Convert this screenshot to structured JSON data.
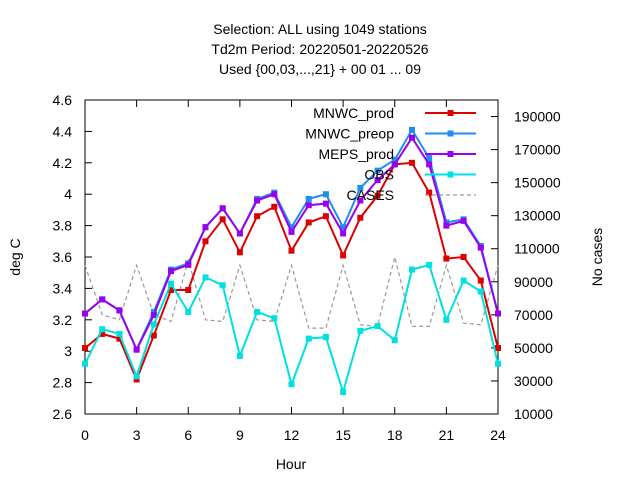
{
  "chart_data": {
    "type": "line",
    "title_lines": [
      "Selection: ALL using  1049 stations",
      "Td2m   Period: 20220501-20220526",
      "Used {00,03,...,21} + 00 01 ... 09"
    ],
    "xlabel": "Hour",
    "ylabel": "deg C",
    "y2label": "No cases",
    "xlim": [
      0,
      24
    ],
    "ylim": [
      2.6,
      4.6
    ],
    "y2lim": [
      10000,
      200000
    ],
    "xticks": [
      "0",
      "3",
      "6",
      "9",
      "12",
      "15",
      "18",
      "21",
      "24"
    ],
    "yticks": [
      "2.6",
      "2.8",
      "3",
      "3.2",
      "3.4",
      "3.6",
      "3.8",
      "4",
      "4.2",
      "4.4",
      "4.6"
    ],
    "y2ticks": [
      "10000",
      "30000",
      "50000",
      "70000",
      "90000",
      "110000",
      "130000",
      "150000",
      "170000",
      "190000"
    ],
    "x": [
      0,
      1,
      2,
      3,
      4,
      5,
      6,
      7,
      8,
      9,
      10,
      11,
      12,
      13,
      14,
      15,
      16,
      17,
      18,
      19,
      20,
      21,
      22,
      23,
      24
    ],
    "series": [
      {
        "name": "MNWC_prod",
        "color": "#dd0000",
        "marker": "square",
        "axis": "y",
        "values": [
          3.02,
          3.11,
          3.08,
          2.82,
          3.1,
          3.39,
          3.39,
          3.7,
          3.84,
          3.63,
          3.86,
          3.92,
          3.64,
          3.82,
          3.86,
          3.61,
          3.85,
          3.99,
          4.19,
          4.2,
          4.01,
          3.59,
          3.6,
          3.45,
          3.02
        ]
      },
      {
        "name": "MNWC_preop",
        "color": "#1e8ff0",
        "marker": "square",
        "axis": "y",
        "values": [
          3.24,
          3.33,
          3.26,
          3.01,
          3.25,
          3.52,
          3.56,
          3.79,
          3.91,
          3.75,
          3.97,
          4.01,
          3.79,
          3.97,
          4.0,
          3.79,
          4.04,
          4.15,
          4.22,
          4.41,
          4.23,
          3.82,
          3.84,
          3.67,
          3.24
        ]
      },
      {
        "name": "MEPS_prod",
        "color": "#9900ee",
        "marker": "square",
        "axis": "y",
        "values": [
          3.24,
          3.33,
          3.26,
          3.01,
          3.23,
          3.51,
          3.55,
          3.79,
          3.91,
          3.75,
          3.96,
          4.0,
          3.76,
          3.93,
          3.94,
          3.75,
          3.96,
          4.09,
          4.19,
          4.36,
          4.19,
          3.8,
          3.83,
          3.66,
          3.24
        ]
      },
      {
        "name": "OBS",
        "color": "#00e0e0",
        "marker": "square",
        "axis": "y",
        "values": [
          2.92,
          3.14,
          3.11,
          2.84,
          3.17,
          3.43,
          3.25,
          3.47,
          3.42,
          2.97,
          3.25,
          3.21,
          2.79,
          3.08,
          3.09,
          2.74,
          3.13,
          3.16,
          3.07,
          3.52,
          3.55,
          3.2,
          3.45,
          3.38,
          2.92
        ]
      },
      {
        "name": "CASES",
        "color": "#999999",
        "dash": "4,3",
        "axis": "y2",
        "values": [
          100000,
          70000,
          67000,
          100000,
          70000,
          66000,
          103000,
          67000,
          66000,
          100000,
          67000,
          66000,
          100000,
          62000,
          62000,
          100000,
          64000,
          63000,
          105000,
          63000,
          63000,
          100000,
          65000,
          64000,
          100000
        ]
      }
    ],
    "legend_position": "top-right",
    "grid": false
  }
}
